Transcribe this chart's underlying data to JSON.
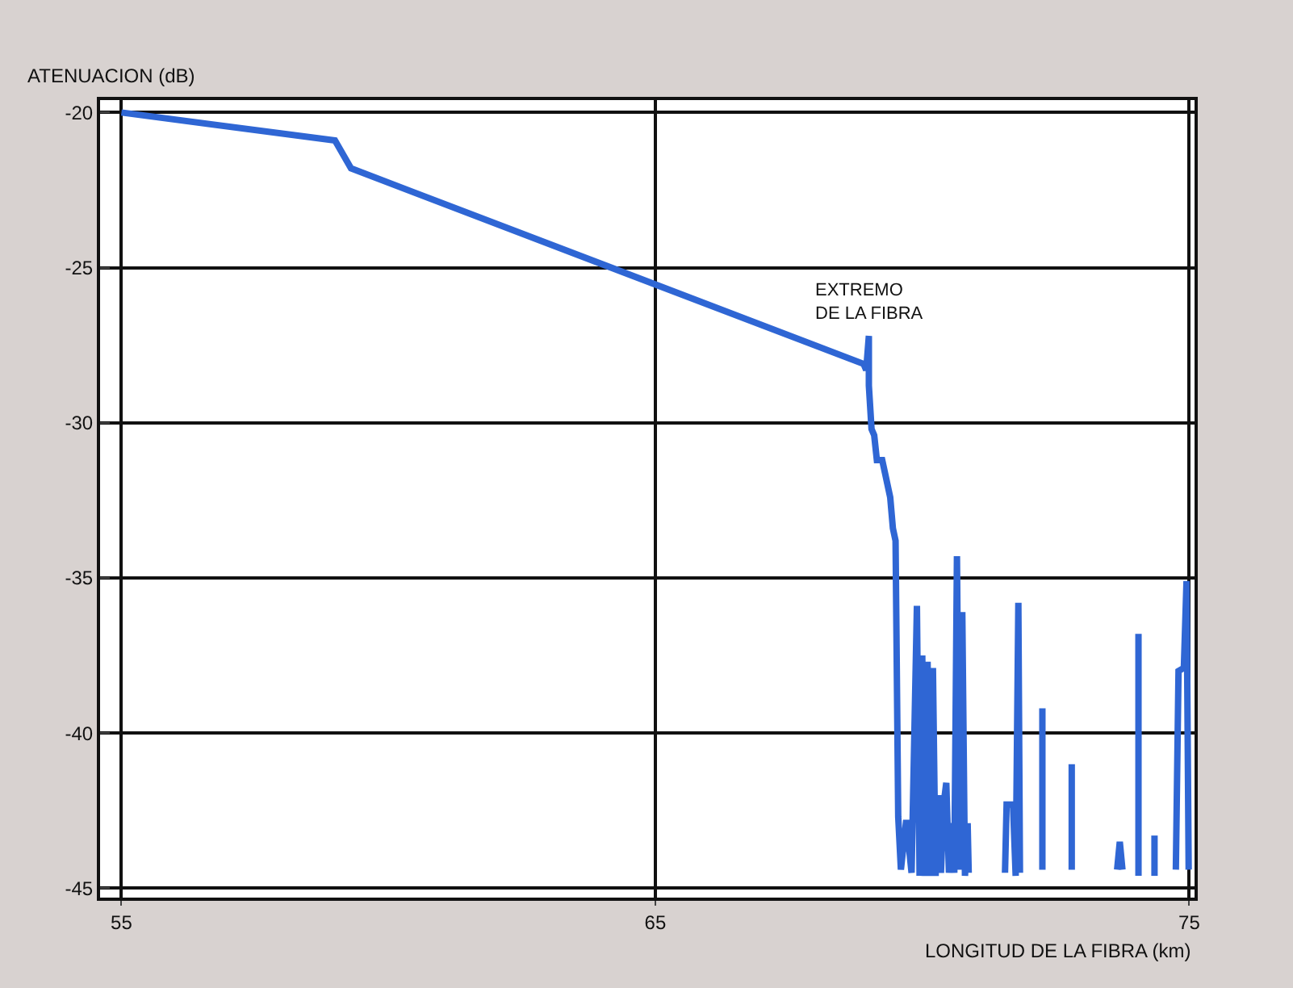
{
  "chart_data": {
    "type": "line",
    "xlabel": "LONGITUD DE LA FIBRA (km)",
    "ylabel": "ATENUACION (dB)",
    "annotations": [
      {
        "text": "EXTREMO\nDE LA FIBRA",
        "x": 69.0,
        "y": -27.2
      }
    ],
    "xlim": [
      54.6,
      75.1
    ],
    "xticks": [
      55,
      65,
      75
    ],
    "ylim": [
      -45.3,
      -19.6
    ],
    "yticks": [
      -20,
      -25,
      -30,
      -35,
      -40,
      -45
    ],
    "grid": true,
    "marker": "none",
    "line_style": "solid",
    "series": [
      {
        "color": "#2f66d4",
        "x": [
          55,
          59,
          59.3,
          68.9,
          68.95,
          69.0,
          69.0,
          69.05,
          69.1,
          69.15,
          69.25,
          69.3,
          69.4,
          69.45,
          69.5,
          69.55,
          69.6,
          69.7,
          69.8,
          69.9,
          69.95,
          70.0,
          70.05,
          70.1,
          70.15,
          70.2,
          70.25,
          70.3,
          70.35,
          70.4,
          70.45,
          70.5,
          70.55,
          70.6,
          70.65,
          70.7,
          70.75,
          70.8,
          70.85,
          70.87,
          71.2,
          71.55,
          71.58,
          71.7,
          71.75,
          71.8,
          71.83,
          72.0,
          72.25,
          72.25,
          72.5,
          72.8,
          72.8,
          73.2,
          73.65,
          73.7,
          73.75,
          73.9,
          74.05,
          74.05,
          74.2,
          74.35,
          74.35,
          74.6,
          74.75,
          74.8,
          74.9,
          74.95,
          74.99
        ],
        "values": [
          -20,
          -20.9,
          -21.8,
          -28.1,
          -28.3,
          -27.2,
          -28.8,
          -30.2,
          -30.4,
          -31.2,
          -31.2,
          -31.6,
          -32.4,
          -33.4,
          -33.8,
          -42.7,
          -44.4,
          -42.8,
          -44.5,
          -35.9,
          -44.6,
          -37.5,
          -44.6,
          -37.7,
          -44.6,
          -37.9,
          -44.6,
          -42.0,
          -44.5,
          -42.3,
          -41.6,
          -44.5,
          -42.9,
          -44.5,
          -34.3,
          -44.4,
          -36.1,
          -44.6,
          -42.9,
          -44.5,
          null,
          -44.5,
          -42.3,
          -42.3,
          -44.6,
          -35.8,
          -44.5,
          null,
          -39.2,
          -44.4,
          null,
          -41.0,
          -44.4,
          null,
          -44.4,
          -43.5,
          -44.4,
          null,
          -36.8,
          -44.6,
          null,
          -43.3,
          -44.6,
          null,
          -44.4,
          -38.0,
          -37.9,
          -35.1,
          -44.4
        ]
      }
    ]
  }
}
